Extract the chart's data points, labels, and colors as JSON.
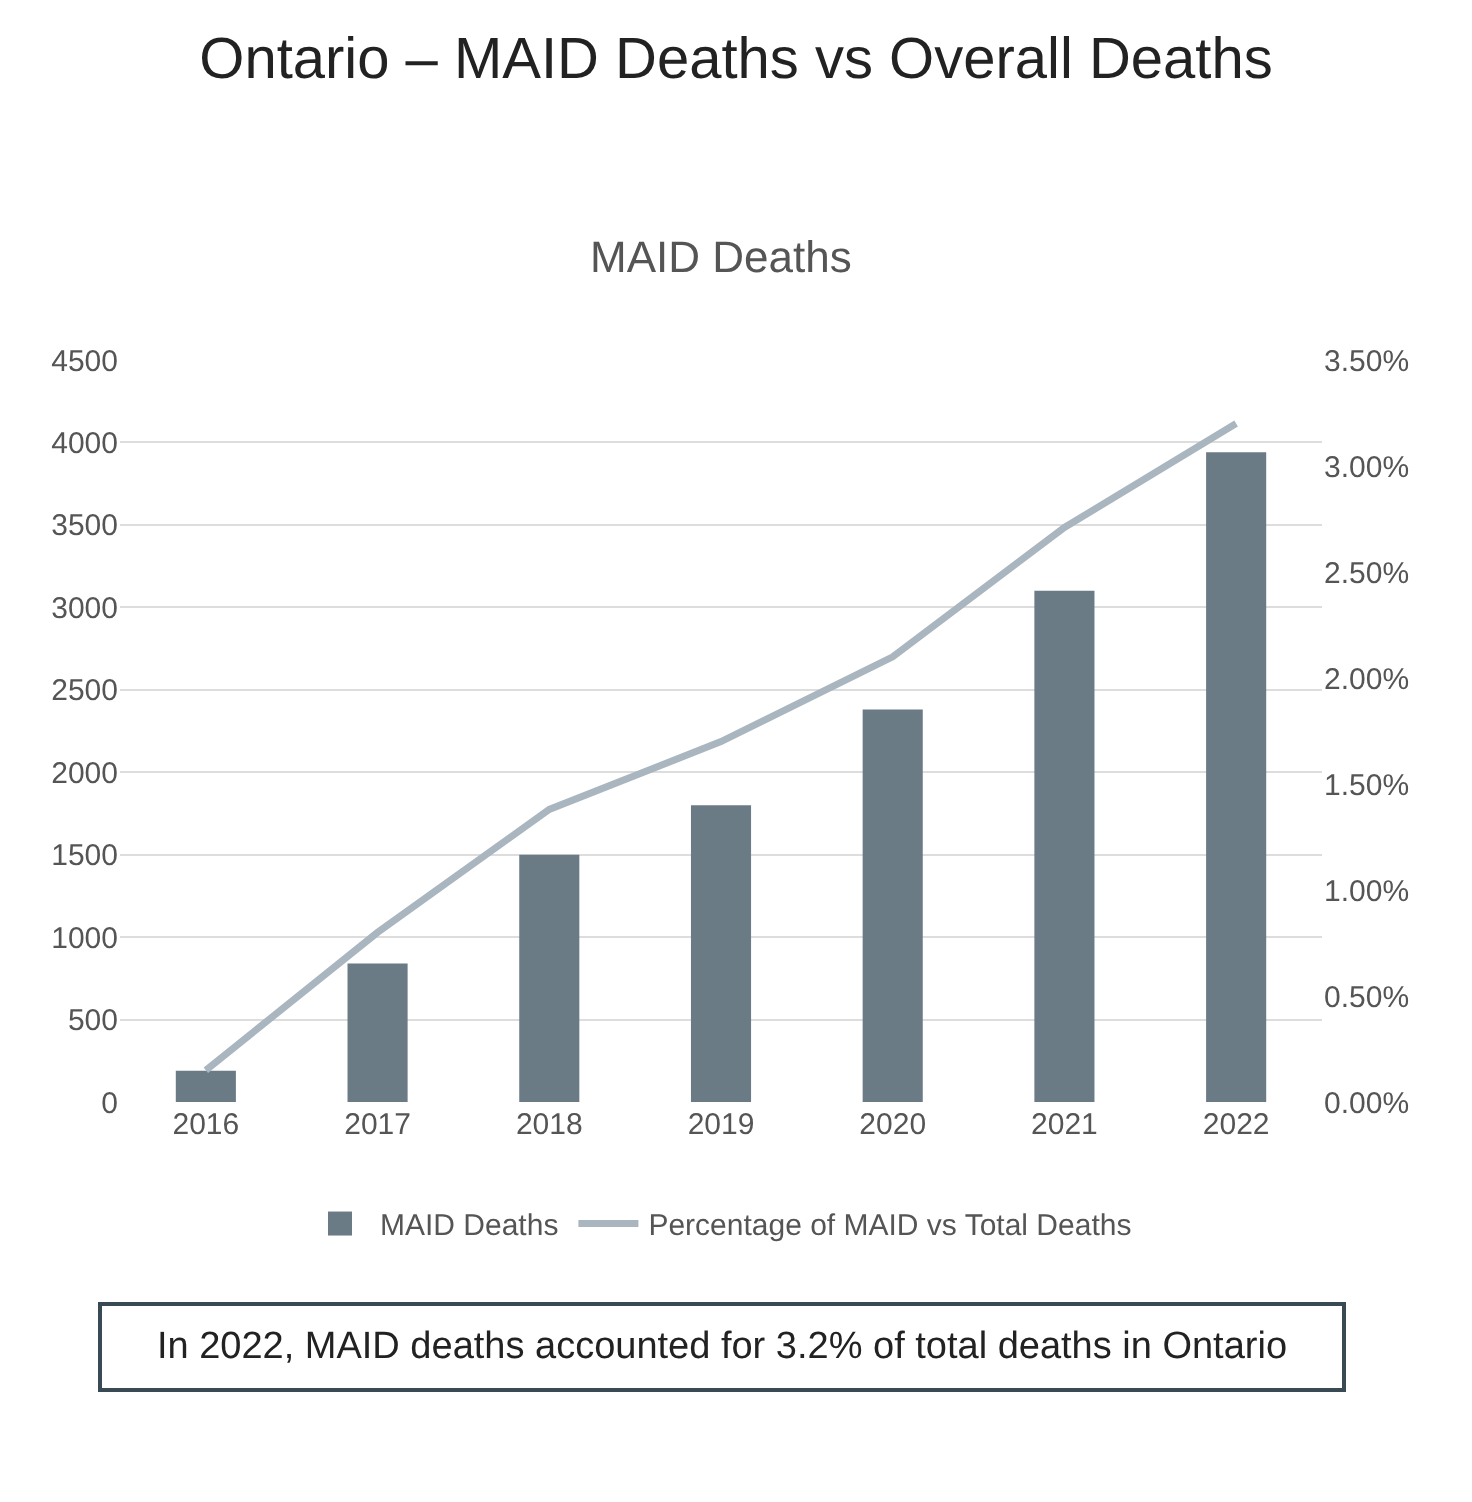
{
  "chart_data": {
    "type": "bar",
    "title": "Ontario – MAID Deaths vs Overall Deaths",
    "subtitle": "MAID Deaths",
    "categories": [
      "2016",
      "2017",
      "2018",
      "2019",
      "2020",
      "2021",
      "2022"
    ],
    "series": [
      {
        "name": "MAID Deaths",
        "color": "#6b7b86",
        "values": [
          190,
          840,
          1500,
          1800,
          2380,
          3100,
          3940
        ]
      },
      {
        "name": "Percentage of MAID vs Total Deaths",
        "type": "line",
        "axis": "y2",
        "color": "#a9b6bf",
        "values": [
          0.15,
          0.8,
          1.38,
          1.7,
          2.1,
          2.71,
          3.2
        ]
      }
    ],
    "ylim": [
      0,
      4500
    ],
    "yticks": [
      0,
      500,
      1000,
      1500,
      2000,
      2500,
      3000,
      3500,
      4000,
      4500
    ],
    "y2lim": [
      0,
      3.5
    ],
    "y2ticks": [
      {
        "value": 0,
        "label": "0.00%"
      },
      {
        "value": 0.5,
        "label": "0.50%"
      },
      {
        "value": 1,
        "label": "1.00%"
      },
      {
        "value": 1.5,
        "label": "1.50%"
      },
      {
        "value": 2,
        "label": "2.00%"
      },
      {
        "value": 2.5,
        "label": "2.50%"
      },
      {
        "value": 3,
        "label": "3.00%"
      },
      {
        "value": 3.5,
        "label": "3.50%"
      }
    ],
    "grid": "y",
    "legend": "bottom",
    "marker": "none",
    "line_style": "solid",
    "annotations": [
      "In 2022, MAID deaths accounted for 3.2% of total deaths in Ontario"
    ]
  }
}
